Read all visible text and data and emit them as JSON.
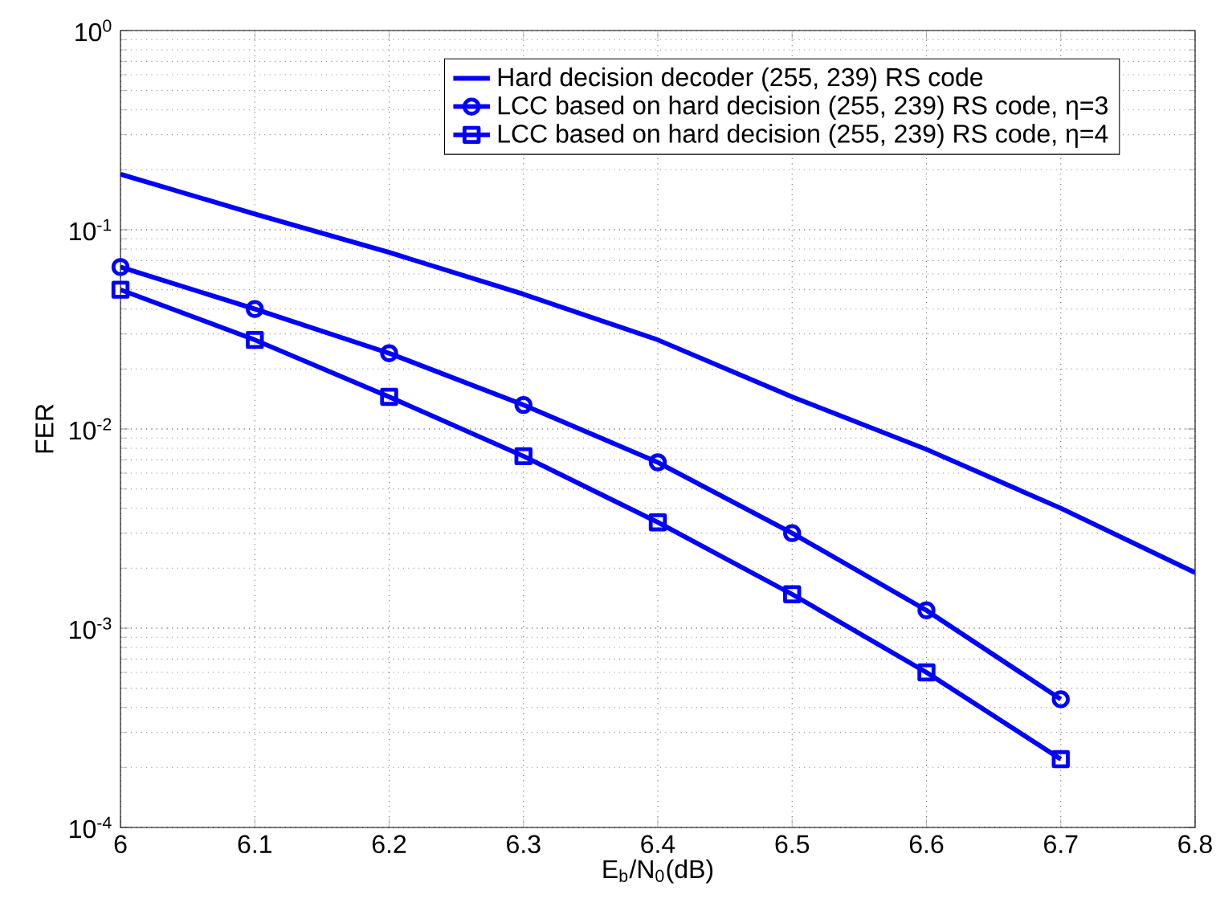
{
  "chart_data": {
    "type": "line",
    "xlabel": "E$_{b}$/N$_{0}$(dB)",
    "ylabel": "FER",
    "log": "y",
    "grid": true,
    "legend": "top right",
    "xlim": [
      6,
      6.8
    ],
    "xticks": [
      6,
      6.1,
      6.2,
      6.3,
      6.4,
      6.5,
      6.6,
      6.7,
      6.8
    ],
    "ylim": [
      0.0001,
      1
    ],
    "yticks": [
      {
        "value": 0.0001,
        "label": "10$^{-4}$"
      },
      {
        "value": 0.001,
        "label": "10$^{-3}$"
      },
      {
        "value": 0.01,
        "label": "10$^{-2}$"
      },
      {
        "value": 0.1,
        "label": "10$^{-1}$"
      },
      {
        "value": 1,
        "label": "10$^{0}$"
      }
    ],
    "series": [
      {
        "name": "Hard decision decoder (255, 239) RS code",
        "color": "#0000ff",
        "marker": "none",
        "x": [
          6,
          6.1,
          6.2,
          6.3,
          6.4,
          6.5,
          6.6,
          6.7,
          6.8
        ],
        "values": [
          0.19,
          0.12,
          0.077,
          0.0475,
          0.028,
          0.0145,
          0.0079,
          0.004,
          0.0019
        ]
      },
      {
        "name": "LCC based on hard decision (255, 239) RS code, η=3",
        "color": "#0000ff",
        "marker": "circle",
        "x": [
          6,
          6.1,
          6.2,
          6.3,
          6.4,
          6.5,
          6.6,
          6.7
        ],
        "values": [
          0.065,
          0.04,
          0.024,
          0.0132,
          0.0068,
          0.003,
          0.00123,
          0.00044
        ]
      },
      {
        "name": "LCC based on hard decision (255, 239) RS code, η=4",
        "color": "#0000ff",
        "marker": "square",
        "x": [
          6,
          6.1,
          6.2,
          6.3,
          6.4,
          6.5,
          6.6,
          6.7
        ],
        "values": [
          0.05,
          0.028,
          0.0145,
          0.0073,
          0.0034,
          0.00148,
          0.0006,
          0.00022
        ]
      }
    ]
  }
}
